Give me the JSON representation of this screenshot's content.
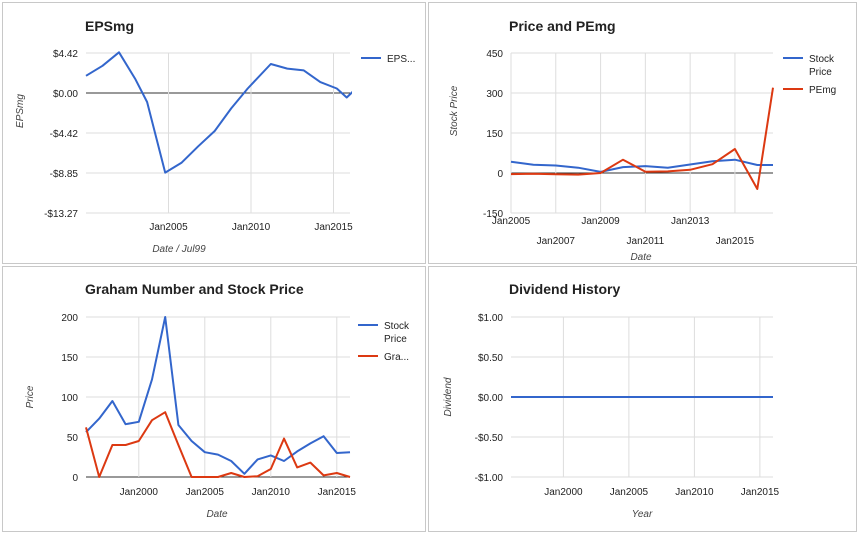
{
  "colors": {
    "blue": "#3366cc",
    "red": "#dc3912",
    "grid": "#dddddd",
    "zero": "#333333"
  },
  "chart_data": [
    {
      "id": "eps",
      "type": "line",
      "title": "EPSmg",
      "xlabel": "Date / Jul99",
      "ylabel": "EPSmg",
      "xlim": [
        2000,
        2016
      ],
      "ylim": [
        -13.27,
        4.42
      ],
      "yticks": [
        4.42,
        0,
        -4.42,
        -8.85,
        -13.27
      ],
      "ytick_labels": [
        "$4.42",
        "$0.00",
        "-$4.42",
        "-$8.85",
        "-$13.27"
      ],
      "xticks": [
        2005,
        2010,
        2015
      ],
      "xtick_labels": [
        "Jan2005",
        "Jan2010",
        "Jan2015"
      ],
      "legend": "right",
      "series": [
        {
          "name": "EPS...",
          "color": "#3366cc",
          "x": [
            2000,
            2001,
            2002,
            2003,
            2003.7,
            2004.8,
            2005.8,
            2006.8,
            2007.8,
            2008.8,
            2009.8,
            2011.2,
            2012.2,
            2013.2,
            2014.2,
            2015.2,
            2015.8,
            2016.2
          ],
          "y": [
            1.9,
            3.0,
            4.5,
            1.5,
            -1.0,
            -8.8,
            -7.7,
            -5.9,
            -4.2,
            -1.7,
            0.5,
            3.2,
            2.7,
            2.5,
            1.2,
            0.5,
            -0.5,
            0.2
          ]
        }
      ]
    },
    {
      "id": "price_pe",
      "type": "line",
      "title": "Price and PEmg",
      "xlabel": "Date",
      "ylabel": "Stock Price",
      "xlim": [
        2005,
        2016.7
      ],
      "ylim": [
        -150,
        450
      ],
      "yticks": [
        450,
        300,
        150,
        0,
        -150
      ],
      "ytick_labels": [
        "450",
        "300",
        "150",
        "0",
        "-150"
      ],
      "xticks": [
        2005,
        2007,
        2009,
        2011,
        2013,
        2015
      ],
      "xtick_labels": [
        "Jan2005",
        "Jan2007",
        "Jan2009",
        "Jan2011",
        "Jan2013",
        "Jan2015"
      ],
      "legend": "right",
      "series": [
        {
          "name": "Stock Price",
          "color": "#3366cc",
          "x": [
            2005,
            2006,
            2007,
            2008,
            2009,
            2010,
            2011,
            2012,
            2013,
            2014,
            2015,
            2016,
            2016.7
          ],
          "y": [
            42,
            31,
            28,
            20,
            4,
            22,
            26,
            20,
            32,
            44,
            50,
            30,
            30
          ]
        },
        {
          "name": "PEmg",
          "color": "#dc3912",
          "x": [
            2005,
            2006,
            2007,
            2008,
            2009,
            2010,
            2011,
            2012,
            2013,
            2014,
            2015,
            2016,
            2016.7
          ],
          "y": [
            -4,
            -3,
            -5,
            -6,
            0,
            50,
            5,
            6,
            12,
            33,
            90,
            -60,
            320
          ]
        }
      ]
    },
    {
      "id": "graham",
      "type": "line",
      "title": "Graham Number and Stock Price",
      "xlabel": "Date",
      "ylabel": "Price",
      "xlim": [
        1996,
        2016
      ],
      "ylim": [
        0,
        200
      ],
      "yticks": [
        200,
        150,
        100,
        50,
        0
      ],
      "ytick_labels": [
        "200",
        "150",
        "100",
        "50",
        "0"
      ],
      "xticks": [
        2000,
        2005,
        2010,
        2015
      ],
      "xtick_labels": [
        "Jan2000",
        "Jan2005",
        "Jan2010",
        "Jan2015"
      ],
      "legend": "right",
      "series": [
        {
          "name": "Stock Price",
          "color": "#3366cc",
          "x": [
            1996,
            1997,
            1998,
            1999,
            2000,
            2001,
            2002,
            2003,
            2004,
            2005,
            2006,
            2007,
            2008,
            2009,
            2010,
            2011,
            2012,
            2013,
            2014,
            2015,
            2016
          ],
          "y": [
            56,
            73,
            95,
            66,
            69,
            122,
            200,
            65,
            45,
            31,
            28,
            20,
            4,
            22,
            27,
            20,
            32,
            42,
            51,
            30,
            31
          ]
        },
        {
          "name": "Gra...",
          "color": "#dc3912",
          "x": [
            1996,
            1997,
            1998,
            1999,
            2000,
            2001,
            2002,
            2003,
            2004,
            2005,
            2006,
            2007,
            2008,
            2009,
            2010,
            2011,
            2012,
            2013,
            2014,
            2015,
            2016
          ],
          "y": [
            62,
            0,
            40,
            40,
            45,
            71,
            81,
            40,
            0,
            0,
            0,
            5,
            0,
            1,
            10,
            48,
            12,
            18,
            2,
            5,
            0
          ]
        }
      ]
    },
    {
      "id": "dividend",
      "type": "line",
      "title": "Dividend History",
      "xlabel": "Year",
      "ylabel": "Dividend",
      "xlim": [
        1996,
        2016
      ],
      "ylim": [
        -1,
        1
      ],
      "yticks": [
        1,
        0.5,
        0,
        -0.5,
        -1
      ],
      "ytick_labels": [
        "$1.00",
        "$0.50",
        "$0.00",
        "-$0.50",
        "-$1.00"
      ],
      "xticks": [
        2000,
        2005,
        2010,
        2015
      ],
      "xtick_labels": [
        "Jan2000",
        "Jan2005",
        "Jan2010",
        "Jan2015"
      ],
      "legend": "none",
      "series": [
        {
          "name": "",
          "color": "#3366cc",
          "x": [
            1996,
            2016
          ],
          "y": [
            0,
            0
          ]
        }
      ]
    }
  ]
}
